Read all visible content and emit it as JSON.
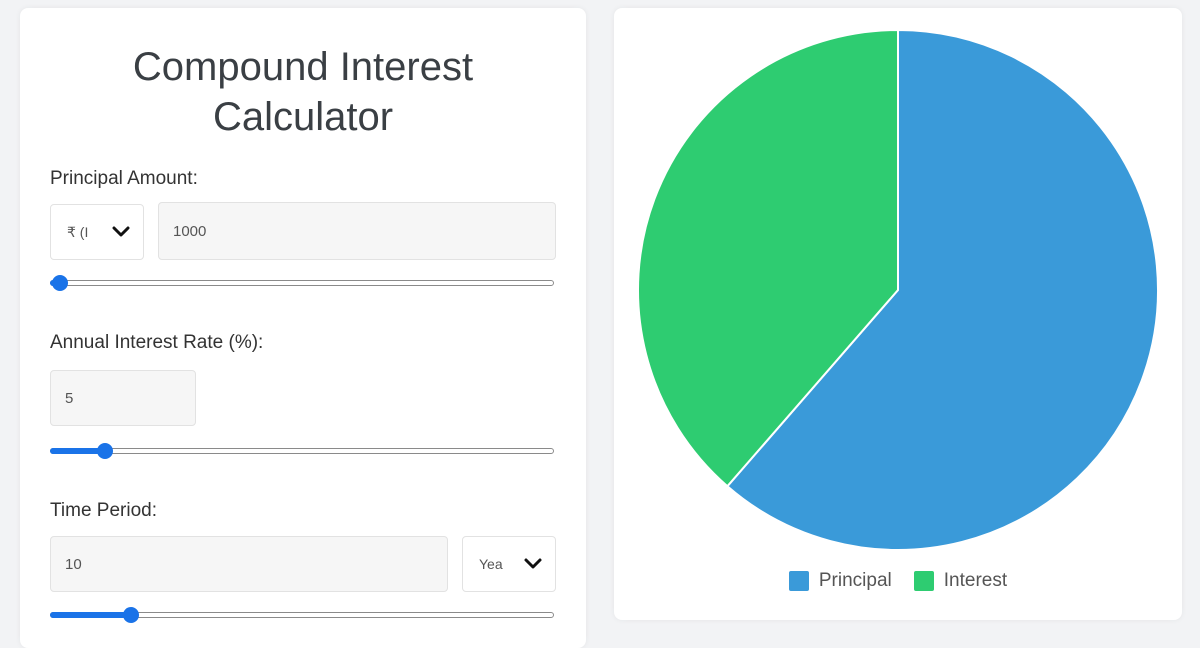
{
  "calculator": {
    "title_line1": "Compound Interest",
    "title_line2": "Calculator",
    "principal": {
      "label": "Principal Amount:",
      "currency_selected": "₹ (I",
      "value": "1000",
      "slider_fraction": 0.02
    },
    "rate": {
      "label": "Annual Interest Rate (%):",
      "value": "5",
      "slider_fraction": 0.11
    },
    "time": {
      "label": "Time Period:",
      "value": "10",
      "unit_selected": "Yea",
      "slider_fraction": 0.16
    }
  },
  "chart_data": {
    "type": "pie",
    "categories": [
      "Principal",
      "Interest"
    ],
    "values": [
      61.39,
      38.61
    ],
    "colors": [
      "#3a9ad9",
      "#2ecc71"
    ],
    "legend": "bottom"
  }
}
